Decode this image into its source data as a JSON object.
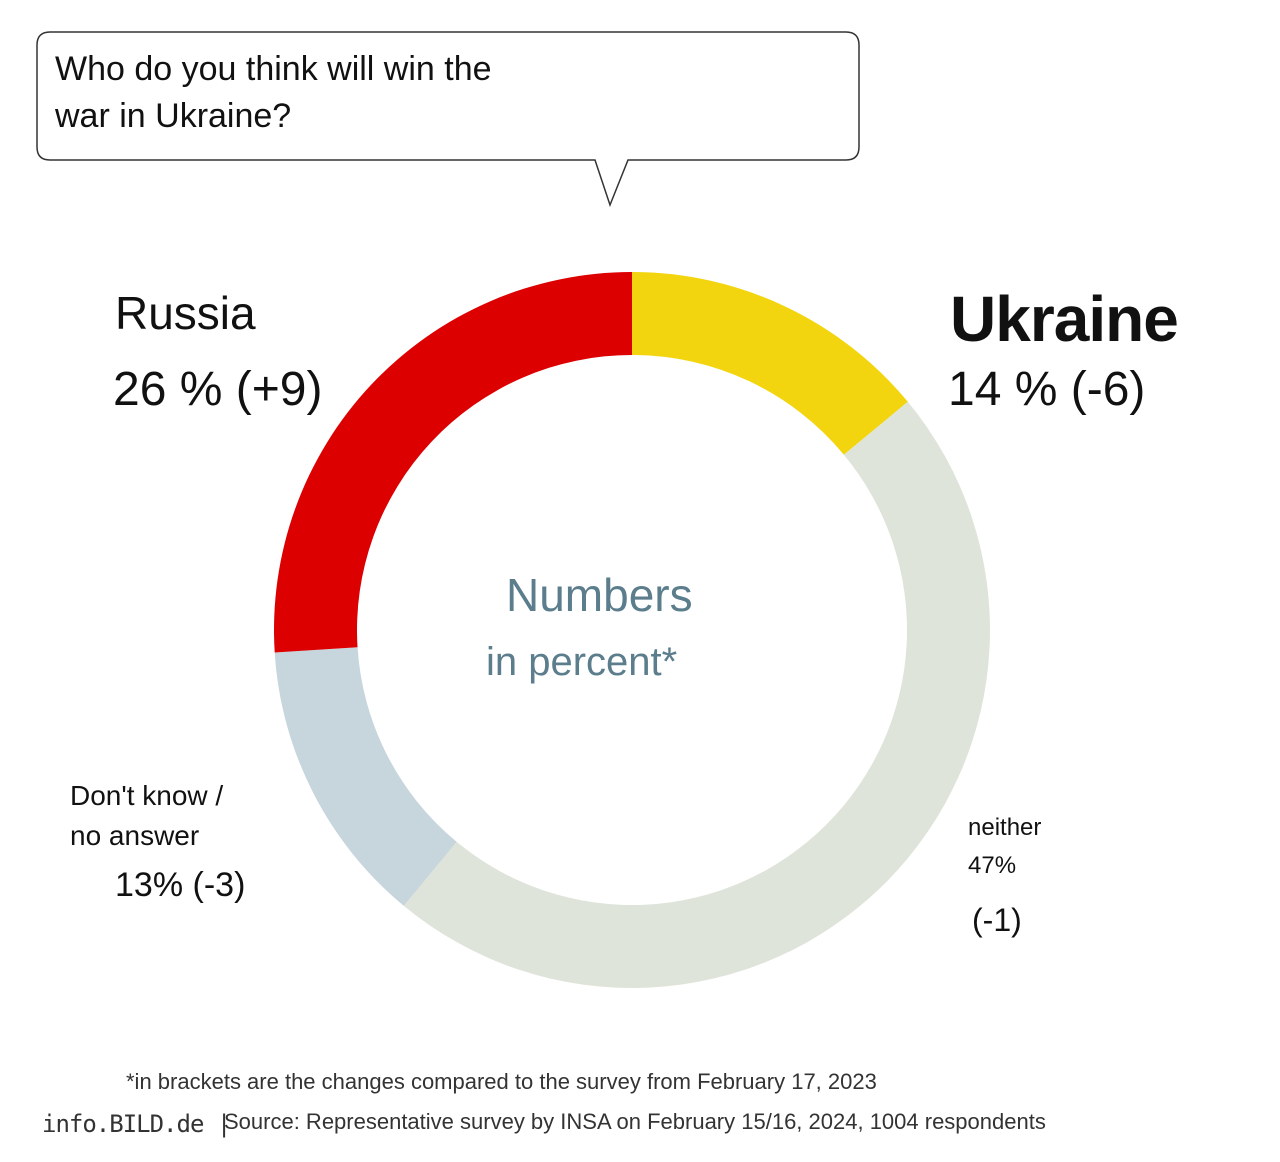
{
  "chart_data": {
    "type": "donut",
    "title": "Who do you think will win the war in Ukraine?",
    "center_text": [
      "Numbers",
      "in percent*"
    ],
    "categories": [
      "Ukraine",
      "neither",
      "Don't know /\nno answer",
      "Russia"
    ],
    "values": [
      14,
      47,
      13,
      26
    ],
    "value_labels": [
      "14 %",
      "47%",
      "13%",
      "26 %"
    ],
    "change_labels": [
      "(-6)",
      "(-1)",
      "(-3)",
      "(+9)"
    ],
    "colors": [
      "#f2d50f",
      "#dfe4da",
      "#c7d5dc",
      "#dd0000"
    ],
    "footnote": "*in brackets are the changes compared to the survey from February 17, 2023",
    "brand": "info.BILD.de |",
    "source": "Source: Representative survey by INSA on February 15/16, 2024, 1004 respondents"
  }
}
